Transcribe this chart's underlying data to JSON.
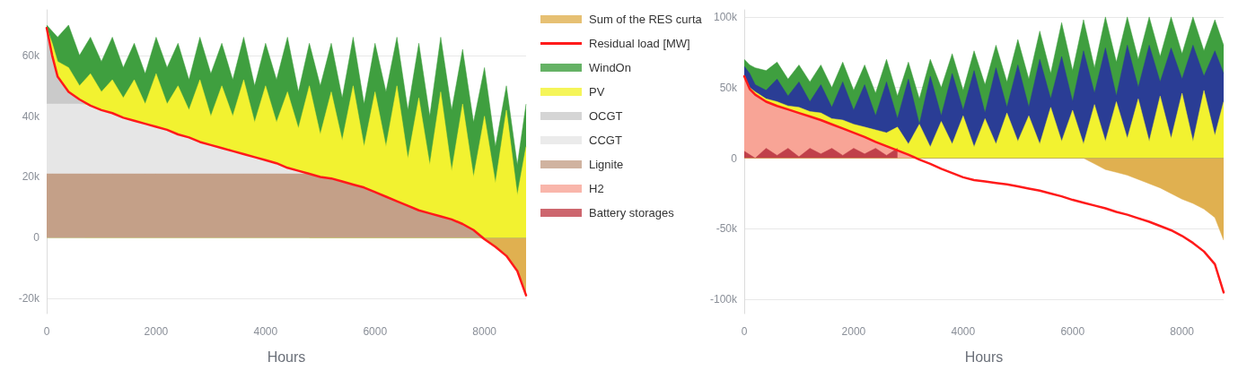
{
  "chart_data": [
    {
      "type": "area",
      "xlabel": "Hours",
      "grid": "y",
      "legend": "right",
      "xlim": [
        0,
        8760
      ],
      "xticks": [
        0,
        2000,
        4000,
        6000,
        8000
      ],
      "ylim": [
        -25000,
        75000
      ],
      "yticks": [
        {
          "value": -20000,
          "label": "-20k"
        },
        0,
        {
          "value": 20000,
          "label": "20k"
        },
        {
          "value": 40000,
          "label": "40k"
        },
        {
          "value": 60000,
          "label": "60k"
        }
      ],
      "x": [
        0,
        100,
        200,
        400,
        600,
        800,
        1000,
        1200,
        1400,
        1600,
        1800,
        2000,
        2200,
        2400,
        2600,
        2800,
        3000,
        3200,
        3400,
        3600,
        3800,
        4000,
        4200,
        4400,
        4600,
        4800,
        5000,
        5200,
        5400,
        5600,
        5800,
        6000,
        6200,
        6400,
        6600,
        6800,
        7000,
        7200,
        7400,
        7600,
        7800,
        8000,
        8200,
        8400,
        8600,
        8760
      ],
      "series": [
        {
          "name": "Sum of the RES curta",
          "color": "#e0b050",
          "x": [
            0,
            7900,
            8000,
            8200,
            8400,
            8600,
            8760
          ],
          "values": [
            0,
            0,
            -500,
            -3000,
            -6000,
            -11000,
            -19000
          ]
        },
        {
          "name": "Residual load [MW]",
          "type": "line",
          "color": "#ff1a1a",
          "values": [
            69000,
            60000,
            53000,
            48000,
            45500,
            43500,
            42000,
            41000,
            39500,
            38500,
            37500,
            36500,
            35500,
            34000,
            33000,
            31500,
            30500,
            29500,
            28500,
            27500,
            26500,
            25500,
            24500,
            23000,
            22000,
            21000,
            20000,
            19500,
            18500,
            17500,
            16500,
            15000,
            13500,
            12000,
            10500,
            9000,
            8000,
            7000,
            6000,
            4500,
            2500,
            -500,
            -3000,
            -6000,
            -11000,
            -19000
          ]
        },
        {
          "name": "WindOn",
          "color": "#3f9f3f",
          "values": [
            70000,
            68000,
            66000,
            70000,
            60000,
            66000,
            58000,
            66000,
            56000,
            64000,
            54000,
            66000,
            56000,
            64000,
            52000,
            66000,
            54000,
            64000,
            52000,
            66000,
            50000,
            64000,
            52000,
            66000,
            48000,
            64000,
            50000,
            64000,
            46000,
            66000,
            44000,
            64000,
            48000,
            66000,
            42000,
            64000,
            40000,
            66000,
            42000,
            62000,
            38000,
            56000,
            30000,
            50000,
            24000,
            44000
          ]
        },
        {
          "name": "PV",
          "color": "#f2f230",
          "values": [
            69000,
            64000,
            58000,
            56000,
            50000,
            54000,
            48000,
            52000,
            46000,
            52000,
            44000,
            54000,
            44000,
            50000,
            42000,
            52000,
            40000,
            50000,
            40000,
            52000,
            38000,
            50000,
            38000,
            48000,
            36000,
            50000,
            34000,
            48000,
            32000,
            50000,
            30000,
            48000,
            30000,
            50000,
            26000,
            46000,
            24000,
            48000,
            22000,
            44000,
            20000,
            40000,
            18000,
            42000,
            14000,
            30000
          ]
        },
        {
          "name": "OCGT",
          "color": "#cacaca",
          "x": [
            0,
            100,
            200,
            400,
            600,
            700
          ],
          "values": [
            69000,
            60000,
            53000,
            48000,
            45500,
            44500
          ]
        },
        {
          "name": "CCGT",
          "color": "#e6e6e6",
          "x": [
            0,
            100,
            200,
            400,
            600,
            800,
            1000,
            1200,
            1400,
            1600,
            1800,
            2000,
            2200,
            2400,
            2600,
            2800,
            3000,
            3200,
            3400,
            3600,
            3800,
            4000,
            4200,
            4400,
            4600,
            4800
          ],
          "values": [
            44000,
            44000,
            44000,
            44000,
            44000,
            43500,
            42000,
            41000,
            39500,
            38500,
            37500,
            36500,
            35500,
            34000,
            33000,
            31500,
            30500,
            29500,
            28500,
            27500,
            26500,
            25500,
            24500,
            23000,
            22000,
            21000
          ]
        },
        {
          "name": "Lignite",
          "color": "#c4a088",
          "x": [
            0,
            100,
            200,
            400,
            600,
            800,
            1000,
            1200,
            1400,
            1600,
            1800,
            2000,
            2200,
            2400,
            2600,
            2800,
            3000,
            3200,
            3400,
            3600,
            3800,
            4000,
            4200,
            4400,
            4600,
            4800,
            5000,
            5200,
            5400,
            5600,
            5800,
            6000,
            6200,
            6400,
            6600,
            6800,
            7000,
            7200,
            7400,
            7600,
            7800,
            8000
          ],
          "values": [
            21000,
            21000,
            21000,
            21000,
            21000,
            21000,
            21000,
            21000,
            21000,
            21000,
            21000,
            21000,
            21000,
            21000,
            21000,
            21000,
            21000,
            21000,
            21000,
            21000,
            21000,
            21000,
            21000,
            21000,
            21000,
            21000,
            20000,
            19500,
            18500,
            17500,
            16500,
            15000,
            13500,
            12000,
            10500,
            9000,
            8000,
            7000,
            6000,
            4500,
            2500,
            0
          ]
        }
      ]
    },
    {
      "type": "area",
      "xlabel": "Hours",
      "grid": "y",
      "legend": "left",
      "xlim": [
        0,
        8760
      ],
      "xticks": [
        0,
        2000,
        4000,
        6000,
        8000
      ],
      "ylim": [
        -110000,
        105000
      ],
      "yticks": [
        {
          "value": -100000,
          "label": "-100k"
        },
        {
          "value": -50000,
          "label": "-50k"
        },
        0,
        {
          "value": 50000,
          "label": "50k"
        },
        {
          "value": 100000,
          "label": "100k"
        }
      ],
      "x": [
        0,
        100,
        200,
        400,
        600,
        800,
        1000,
        1200,
        1400,
        1600,
        1800,
        2000,
        2200,
        2400,
        2600,
        2800,
        3000,
        3200,
        3400,
        3600,
        3800,
        4000,
        4200,
        4400,
        4600,
        4800,
        5000,
        5200,
        5400,
        5600,
        5800,
        6000,
        6200,
        6400,
        6600,
        6800,
        7000,
        7200,
        7400,
        7600,
        7800,
        8000,
        8200,
        8400,
        8600,
        8760
      ],
      "series": [
        {
          "name": "WindOn",
          "color": "#3f9f3f",
          "values": [
            70000,
            66000,
            64000,
            62000,
            68000,
            56000,
            66000,
            54000,
            66000,
            50000,
            68000,
            48000,
            66000,
            46000,
            70000,
            44000,
            68000,
            42000,
            70000,
            50000,
            74000,
            48000,
            76000,
            52000,
            80000,
            54000,
            84000,
            56000,
            90000,
            60000,
            96000,
            62000,
            98000,
            64000,
            100000,
            68000,
            100000,
            70000,
            100000,
            72000,
            100000,
            74000,
            100000,
            76000,
            98000,
            80000
          ]
        },
        {
          "color": "#2a3d95",
          "values": [
            65000,
            60000,
            52000,
            48000,
            56000,
            44000,
            54000,
            40000,
            52000,
            36000,
            54000,
            34000,
            52000,
            30000,
            54000,
            28000,
            56000,
            24000,
            58000,
            30000,
            60000,
            34000,
            62000,
            32000,
            64000,
            36000,
            66000,
            36000,
            70000,
            42000,
            72000,
            40000,
            76000,
            46000,
            78000,
            44000,
            80000,
            50000,
            80000,
            54000,
            78000,
            56000,
            80000,
            58000,
            76000,
            60000
          ]
        },
        {
          "name": "PV",
          "color": "#f2f230",
          "values": [
            58000,
            50000,
            47000,
            42000,
            40000,
            37000,
            36000,
            33000,
            32000,
            28000,
            27000,
            24000,
            22000,
            20000,
            18000,
            22000,
            10000,
            24000,
            8000,
            26000,
            10000,
            30000,
            8000,
            28000,
            10000,
            32000,
            12000,
            30000,
            10000,
            36000,
            12000,
            34000,
            10000,
            38000,
            12000,
            40000,
            14000,
            42000,
            12000,
            44000,
            14000,
            46000,
            12000,
            48000,
            16000,
            40000
          ]
        },
        {
          "name": "H2",
          "color": "#f8a496",
          "x": [
            0,
            100,
            200,
            400,
            600,
            800,
            1000,
            1200,
            1400,
            1600,
            1800,
            2000,
            2200,
            2400,
            2600,
            2800,
            3000,
            3150
          ],
          "values": [
            58000,
            49000,
            45000,
            40000,
            37000,
            34500,
            32000,
            29500,
            27000,
            24000,
            21000,
            18000,
            15000,
            11500,
            8500,
            5500,
            2500,
            0
          ]
        },
        {
          "name": "Battery storages",
          "color": "#c0404a",
          "x": [
            0,
            200,
            400,
            600,
            800,
            1000,
            1200,
            1400,
            1600,
            1800,
            2000,
            2200,
            2400,
            2600,
            2800
          ],
          "values": [
            5000,
            0,
            7000,
            2000,
            7000,
            1000,
            7000,
            3000,
            7000,
            2000,
            7000,
            3000,
            7000,
            2000,
            7000
          ]
        },
        {
          "name": "Sum of the RES curta",
          "color": "#e0b050",
          "x": [
            0,
            6200,
            6400,
            6600,
            6800,
            7000,
            7200,
            7400,
            7600,
            7800,
            8000,
            8200,
            8400,
            8600,
            8760
          ],
          "values": [
            0,
            0,
            -4000,
            -8000,
            -10000,
            -12000,
            -15000,
            -18000,
            -21000,
            -25000,
            -29000,
            -32000,
            -36000,
            -42000,
            -58000
          ]
        },
        {
          "name": "Residual load [MW]",
          "type": "line",
          "color": "#ff1a1a",
          "values": [
            58000,
            49000,
            45000,
            40000,
            37000,
            34500,
            32000,
            29500,
            27000,
            24000,
            21000,
            18000,
            15000,
            11500,
            8500,
            5500,
            2500,
            -1000,
            -4000,
            -7500,
            -10500,
            -13500,
            -15500,
            -16500,
            -17500,
            -18500,
            -20000,
            -21500,
            -23000,
            -25000,
            -27000,
            -29500,
            -31500,
            -33500,
            -35500,
            -38000,
            -40000,
            -42500,
            -45000,
            -48000,
            -51000,
            -55000,
            -60000,
            -66000,
            -75000,
            -95000
          ]
        }
      ]
    }
  ]
}
